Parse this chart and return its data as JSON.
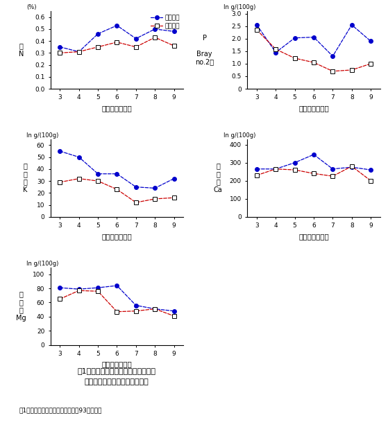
{
  "x": [
    3,
    4,
    5,
    6,
    7,
    8,
    9
  ],
  "panel1": {
    "ylabel_top": "(%)",
    "ylabel_side": "全\nN",
    "xlabel": "処理開始後年数",
    "blue": [
      0.35,
      0.31,
      0.46,
      0.53,
      0.42,
      0.5,
      0.48
    ],
    "red": [
      0.3,
      0.31,
      0.35,
      0.39,
      0.35,
      0.43,
      0.36
    ],
    "ylim": [
      0,
      0.65
    ],
    "yticks": [
      0.0,
      0.1,
      0.2,
      0.3,
      0.4,
      0.5,
      0.6
    ]
  },
  "panel2": {
    "ylabel_top": "In g/(100g)",
    "ylabel_side": "P\n\nBray\nno.2法",
    "xlabel": "処理開始後年数",
    "blue": [
      2.55,
      1.45,
      2.03,
      2.06,
      1.3,
      2.55,
      1.9
    ],
    "red": [
      2.35,
      1.58,
      1.22,
      1.05,
      0.7,
      0.75,
      1.0
    ],
    "ylim": [
      0,
      3.1
    ],
    "yticks": [
      0,
      0.5,
      1.0,
      1.5,
      2.0,
      2.5,
      3.0
    ]
  },
  "panel3": {
    "ylabel_top": "In g/(100g)",
    "ylabel_side": "置\n換\n性\nK",
    "xlabel": "処理開始後年数",
    "blue": [
      55,
      50,
      36,
      36,
      25,
      24,
      32
    ],
    "red": [
      29,
      32,
      30,
      23,
      12,
      15,
      16
    ],
    "ylim": [
      0,
      65
    ],
    "yticks": [
      0,
      10,
      20,
      30,
      40,
      50,
      60
    ]
  },
  "panel4": {
    "ylabel_top": "In g/(100g)",
    "ylabel_side": "置\n換\n性\nCa",
    "xlabel": "処理開始後年数",
    "blue": [
      265,
      265,
      300,
      345,
      265,
      275,
      260
    ],
    "red": [
      230,
      265,
      260,
      240,
      225,
      280,
      200
    ],
    "ylim": [
      0,
      430
    ],
    "yticks": [
      0,
      100,
      200,
      300,
      400
    ]
  },
  "panel5": {
    "ylabel_top": "In g/(100g)",
    "ylabel_side": "置\n換\n性\nMg",
    "xlabel": "処理開始後年数",
    "blue": [
      81,
      79,
      81,
      84,
      56,
      51,
      48
    ],
    "red": [
      65,
      77,
      76,
      47,
      48,
      51,
      41
    ],
    "ylim": [
      0,
      110
    ],
    "yticks": [
      0,
      20,
      40,
      60,
      80,
      100
    ]
  },
  "legend_label1": "糞有り区",
  "legend_label2": "糞無し区",
  "blue_color": "#0000cc",
  "red_color": "#cc0000",
  "caption_line1": "図1．無施膂放牧草地の土壌中成分含",
  "caption_line2": "量に及ぼす放牧牛の排糞の影響",
  "footnote": "注1）両区への無施膂、放牧処理も93年に開始"
}
